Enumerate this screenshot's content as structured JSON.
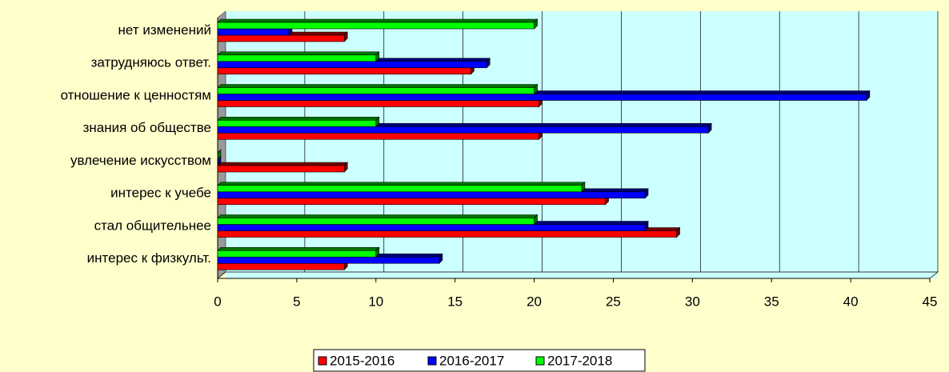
{
  "chart_data": {
    "type": "bar",
    "orientation": "horizontal",
    "categories": [
      "нет изменений",
      "затрудняюсь ответ.",
      "отношение к ценностям",
      "знания об обществе",
      "увлечение искусством",
      "интерес к учебе",
      "стал общительнее",
      "интерес к физкульт."
    ],
    "series": [
      {
        "name": "2015-2016",
        "color": "#ff0000",
        "values": [
          8,
          16,
          20.3,
          20.3,
          8,
          24.5,
          29,
          8
        ]
      },
      {
        "name": "2016-2017",
        "color": "#0000ff",
        "values": [
          4.5,
          17,
          41,
          31,
          0,
          27,
          27,
          14
        ]
      },
      {
        "name": "2017-2018",
        "color": "#00ff00",
        "values": [
          20,
          10,
          20,
          10,
          0,
          23,
          20,
          10
        ]
      }
    ],
    "xlim": [
      0,
      45
    ],
    "xticks": [
      0,
      5,
      10,
      15,
      20,
      25,
      30,
      35,
      40,
      45
    ],
    "grid": true,
    "legend": "bottom"
  }
}
